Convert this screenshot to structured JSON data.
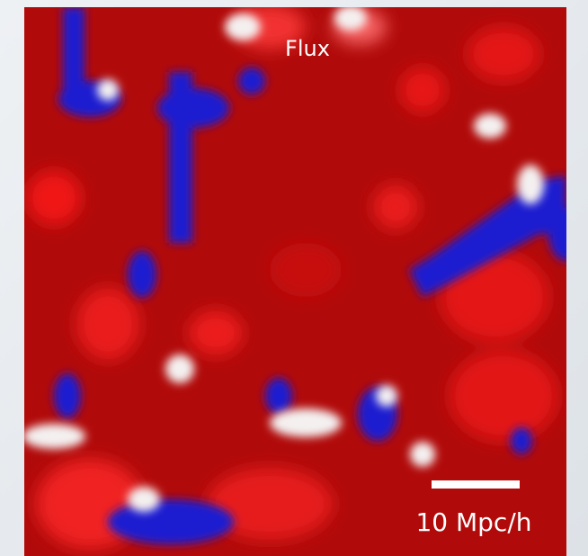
{
  "panel": {
    "title": "Flux",
    "scale_bar": {
      "label": "10 Mpc/h"
    }
  }
}
